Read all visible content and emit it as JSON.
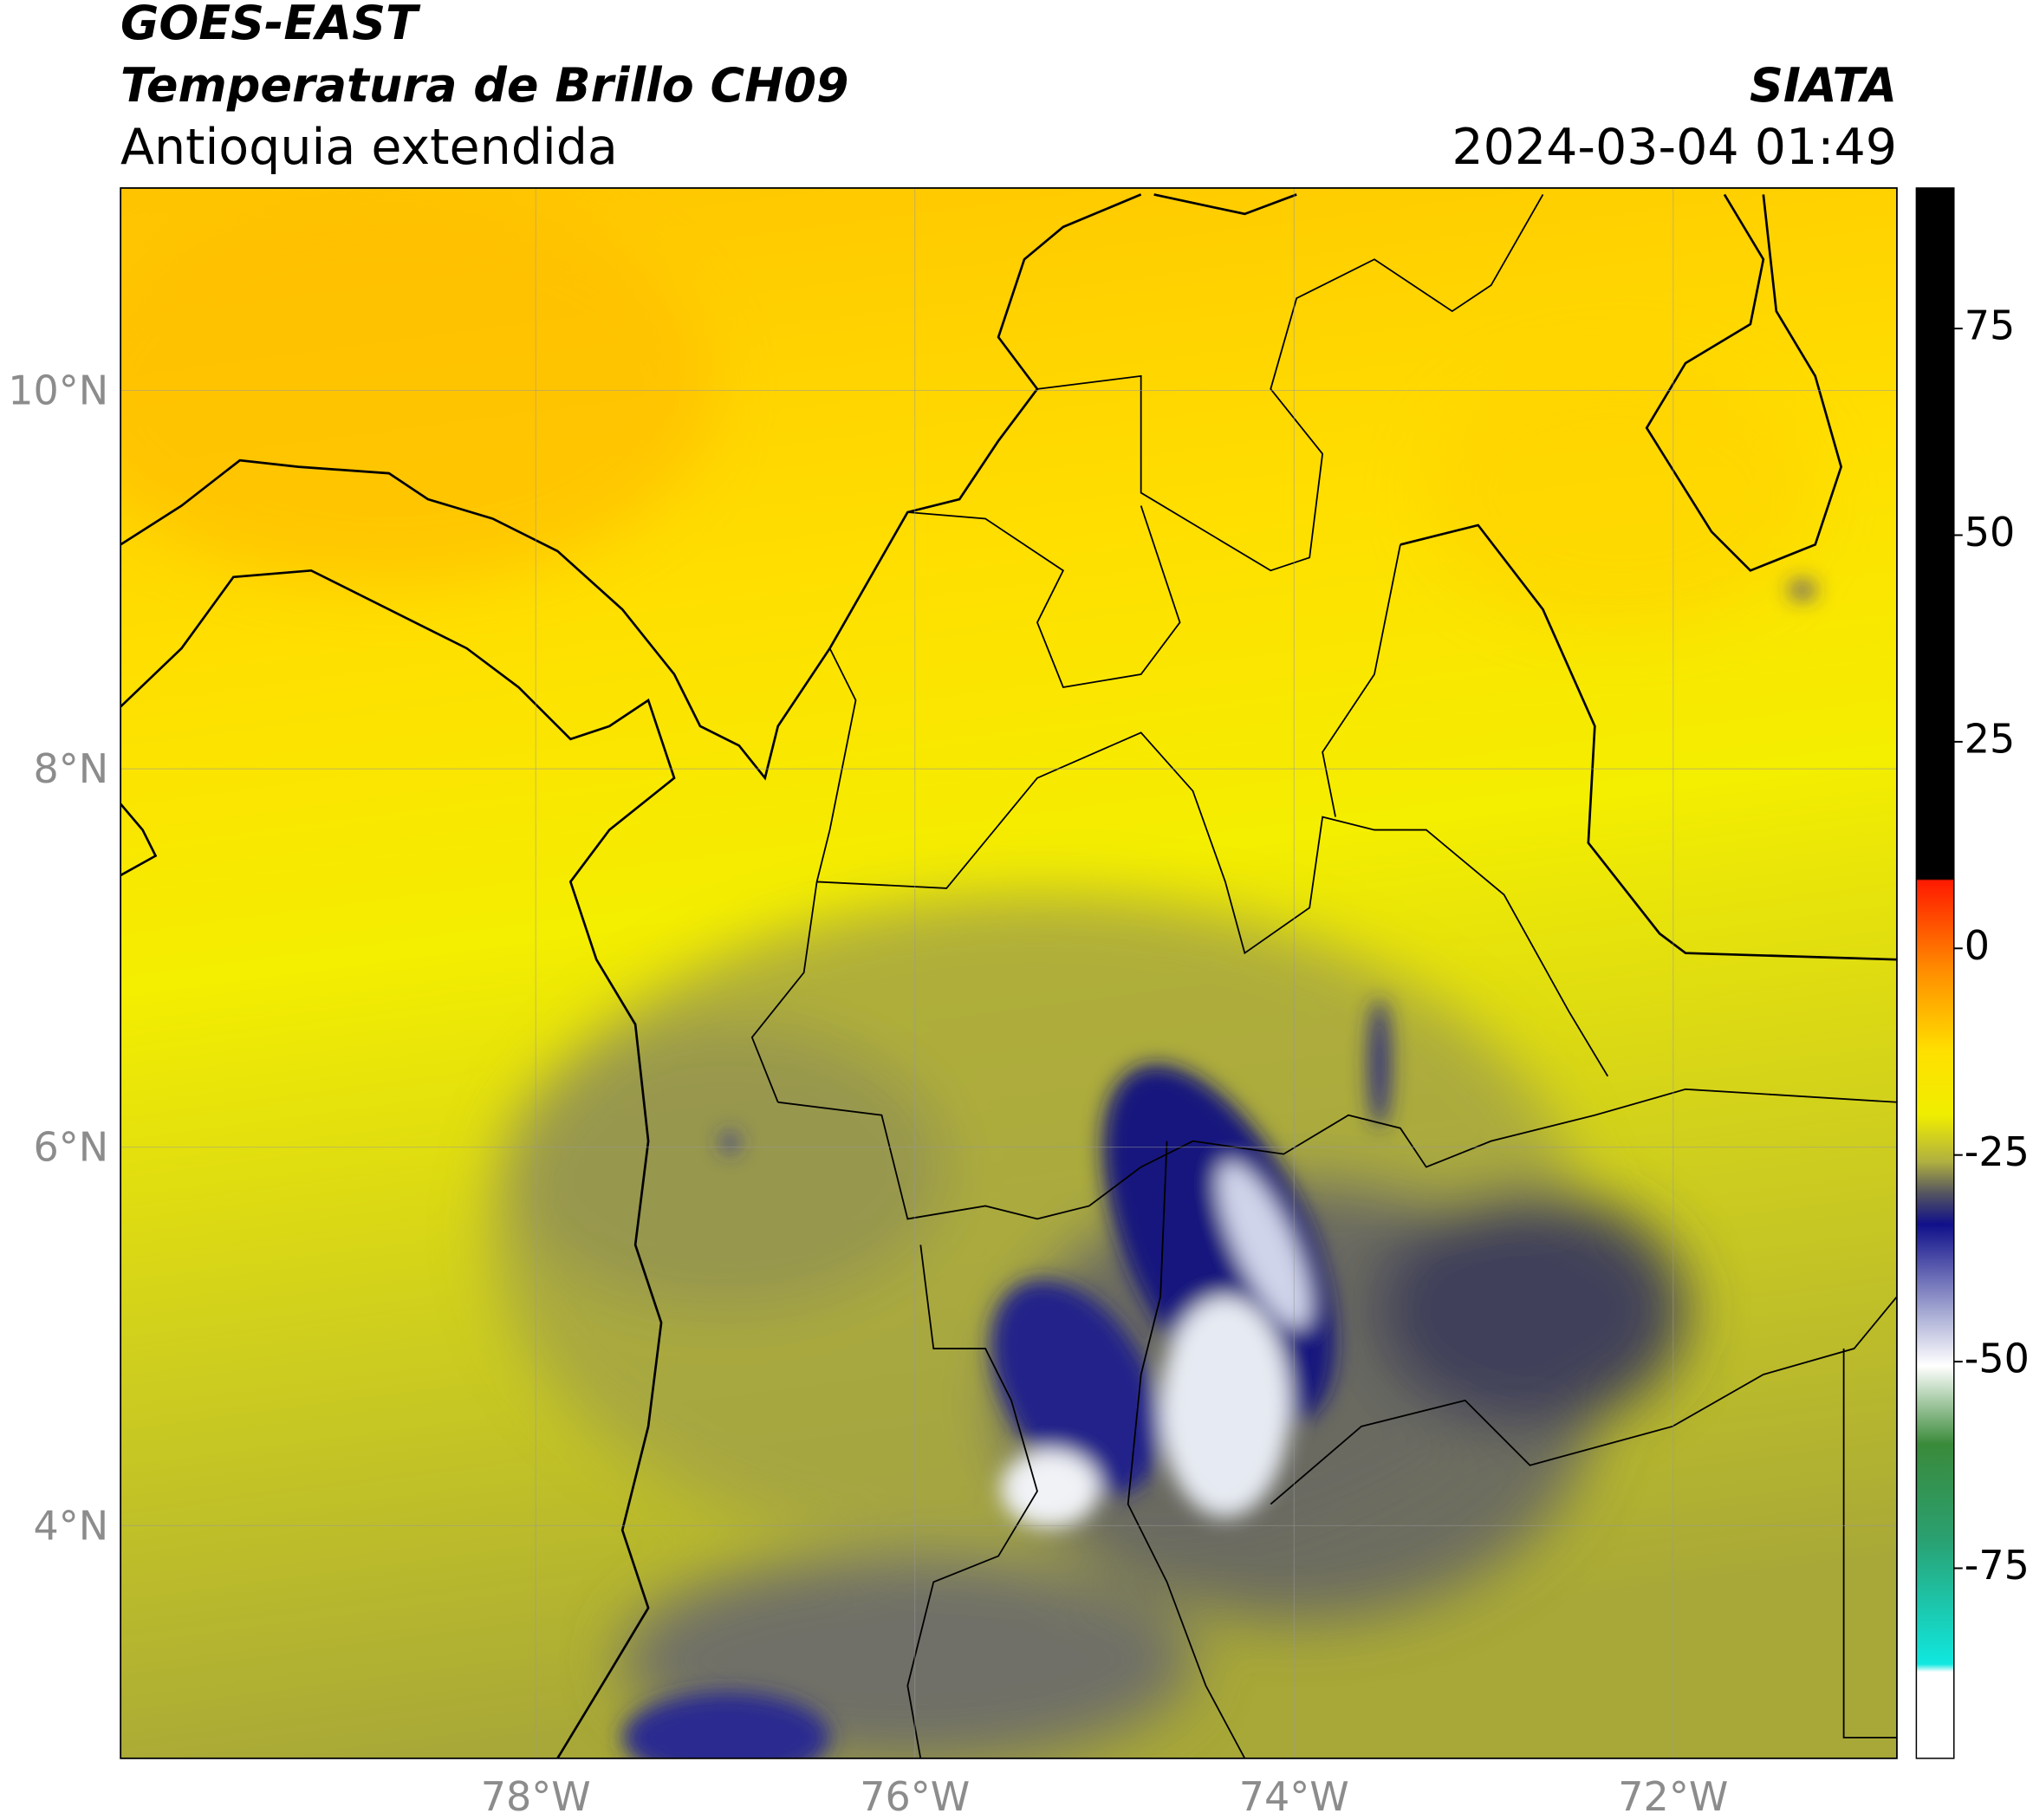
{
  "header": {
    "title": "GOES-EAST",
    "subtitle": "Temperatura de Brillo CH09",
    "region": "Antioquia extendida",
    "agency": "SIATA",
    "datetime": "2024-03-04 01:49"
  },
  "map": {
    "xlim": [
      -80.19,
      -70.82
    ],
    "ylim": [
      2.77,
      11.07
    ],
    "xticks": [
      {
        "value": -78,
        "label": "78°W"
      },
      {
        "value": -76,
        "label": "76°W"
      },
      {
        "value": -74,
        "label": "74°W"
      },
      {
        "value": -72,
        "label": "72°W"
      }
    ],
    "yticks": [
      {
        "value": 4,
        "label": "4°N"
      },
      {
        "value": 6,
        "label": "6°N"
      },
      {
        "value": 8,
        "label": "8°N"
      },
      {
        "value": 10,
        "label": "10°N"
      }
    ],
    "grid": true
  },
  "colorbar": {
    "lim": [
      -98,
      92
    ],
    "ticks": [
      75,
      50,
      25,
      0,
      -25,
      -50,
      -75
    ]
  }
}
